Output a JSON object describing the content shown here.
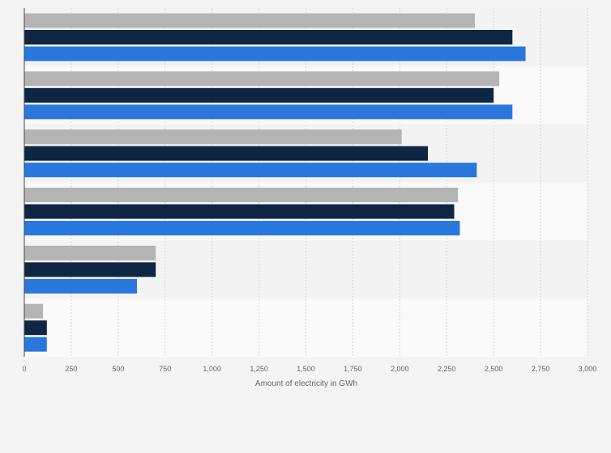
{
  "chart_data": {
    "type": "bar",
    "orientation": "horizontal",
    "categories": [
      "",
      "",
      "",
      "",
      "",
      ""
    ],
    "series": [
      {
        "color": "#b4b4b4",
        "values": [
          2400,
          2530,
          2010,
          2310,
          700,
          100
        ]
      },
      {
        "color": "#0f2642",
        "values": [
          2600,
          2500,
          2150,
          2290,
          700,
          120
        ]
      },
      {
        "color": "#2a77dd",
        "values": [
          2670,
          2600,
          2410,
          2320,
          600,
          120
        ]
      }
    ],
    "xlim": [
      0,
      3000
    ],
    "xticks": [
      "0",
      "250",
      "500",
      "750",
      "1,000",
      "1,250",
      "1,500",
      "1,750",
      "2,000",
      "2,250",
      "2,500",
      "2,750",
      "3,000"
    ],
    "xlabel": "Amount of electricity in GWh",
    "ylabel": "",
    "title": "",
    "grid": true,
    "legend": "none"
  }
}
